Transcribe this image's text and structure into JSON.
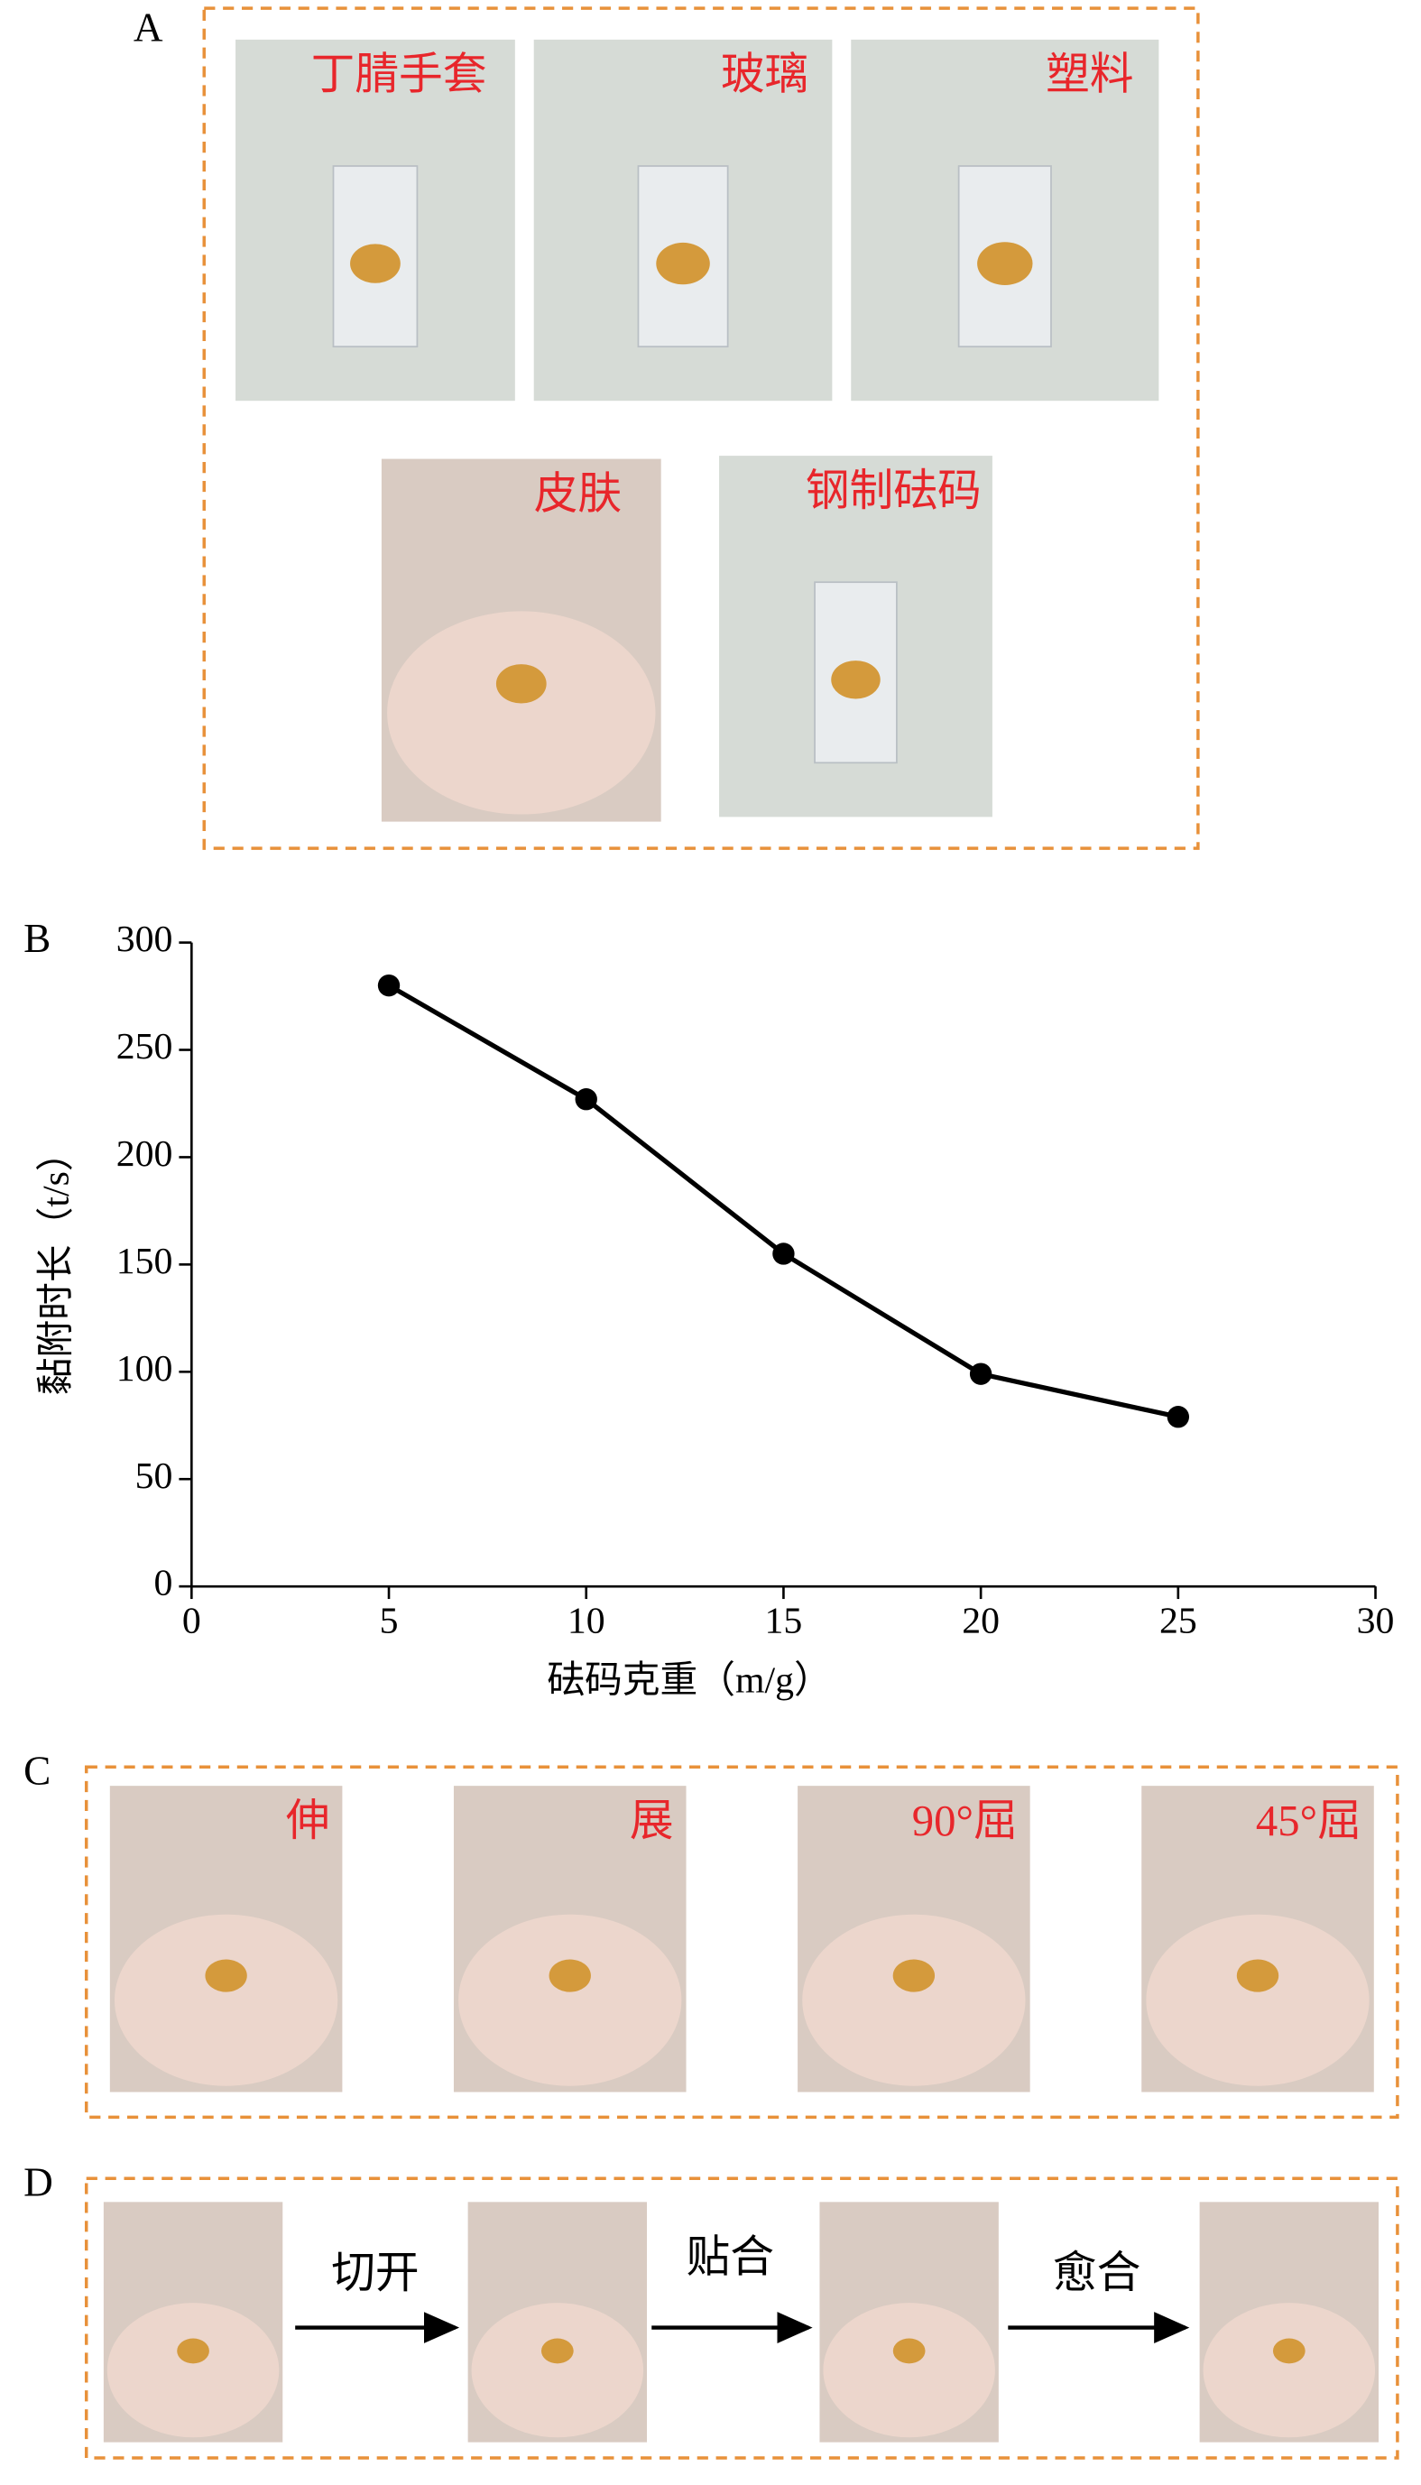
{
  "panel_a": {
    "label": "A",
    "photos": [
      "丁腈手套",
      "玻璃",
      "塑料",
      "皮肤",
      "钢制砝码"
    ]
  },
  "chart_data": {
    "type": "line",
    "panel_label": "B",
    "x": [
      5,
      10,
      15,
      20,
      25
    ],
    "series": [
      {
        "color": "#000000",
        "values": [
          280,
          227,
          155,
          99,
          79
        ]
      }
    ],
    "xlabel": "砝码克重（m/g）",
    "ylabel": "黏附时长（t/s）",
    "xlim": [
      0,
      30
    ],
    "xticks": [
      0,
      5,
      10,
      15,
      20,
      25,
      30
    ],
    "ylim": [
      0,
      300
    ],
    "yticks": [
      0,
      50,
      100,
      150,
      200,
      250,
      300
    ]
  },
  "panel_c": {
    "label": "C",
    "photos": [
      "伸",
      "展",
      "90°屈",
      "45°屈"
    ]
  },
  "panel_d": {
    "label": "D",
    "steps": [
      "切开",
      "贴合",
      "愈合"
    ]
  }
}
